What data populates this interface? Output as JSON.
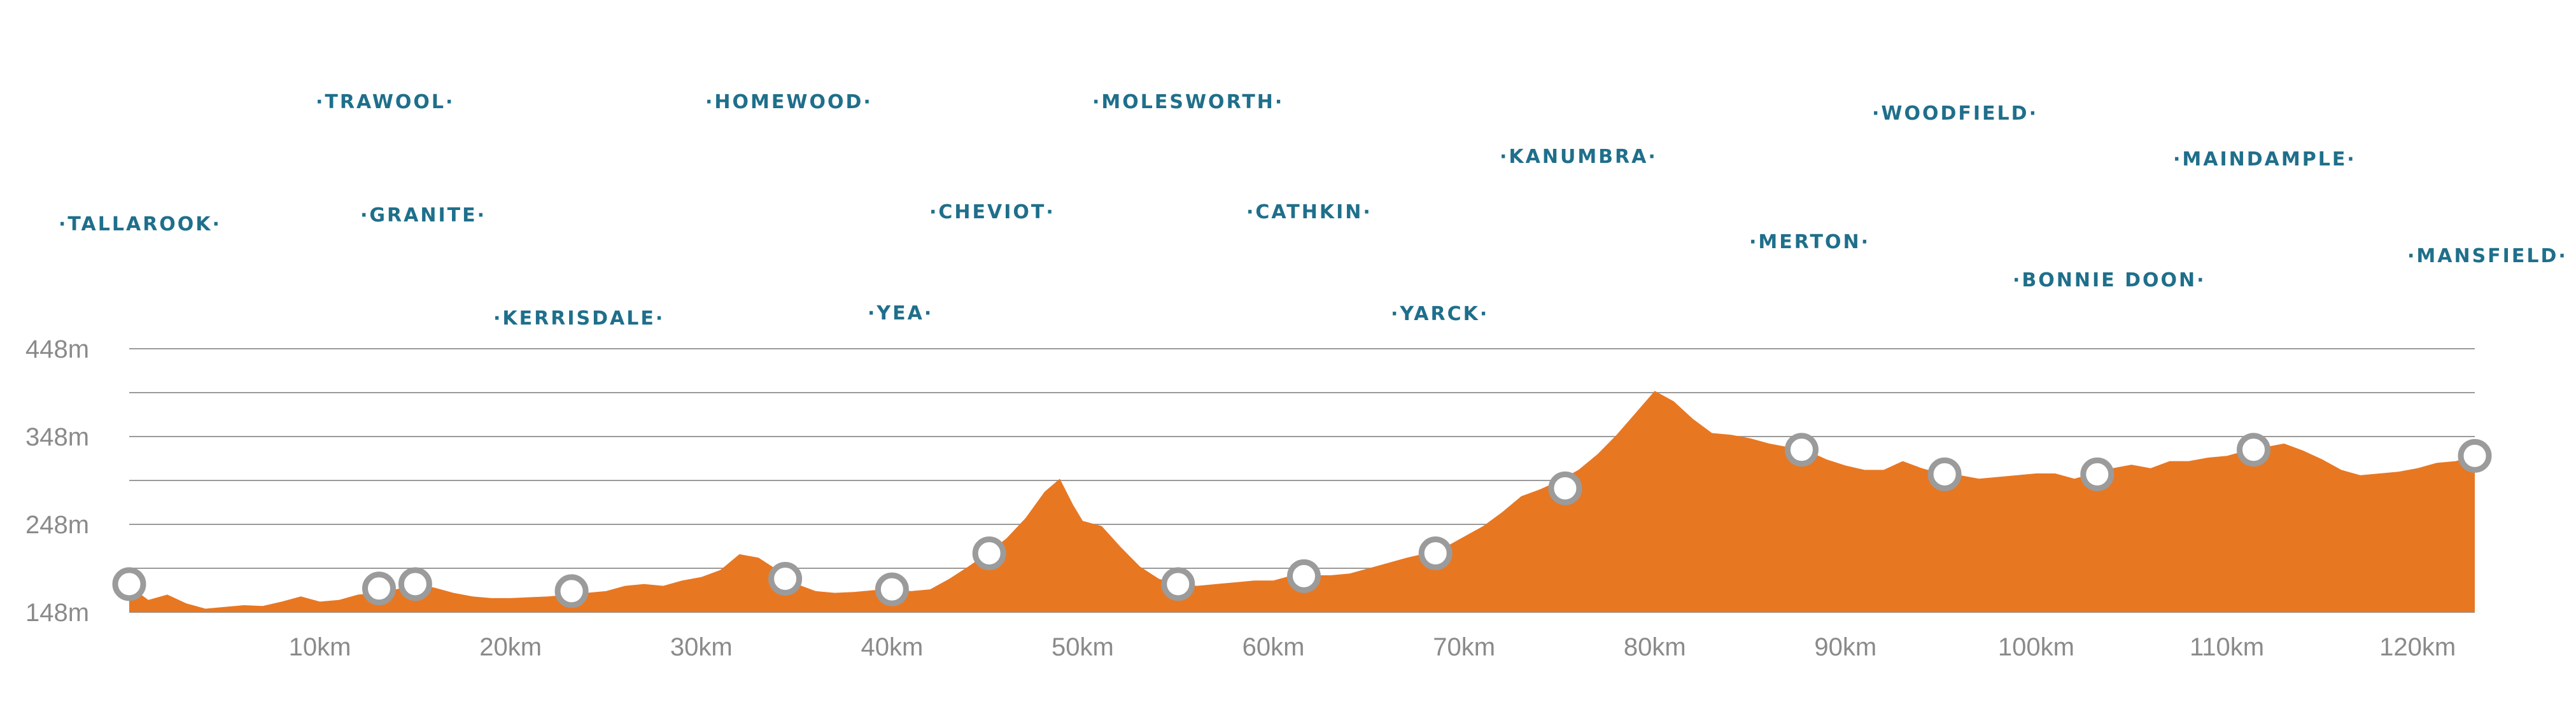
{
  "chart_data": {
    "type": "area",
    "title": "",
    "xlabel": "",
    "ylabel": "",
    "colors": {
      "fill": "#E87722",
      "town_label": "#1F6F8B",
      "grid": "#9A9A9A",
      "axis_text": "#8A8A8A",
      "marker_ring": "#9B9B9B"
    },
    "grid": true,
    "xlim": [
      0,
      123
    ],
    "ylim": [
      148,
      448
    ],
    "y_ticks": [
      {
        "value": 148,
        "label": "148m"
      },
      {
        "value": 248,
        "label": "248m"
      },
      {
        "value": 348,
        "label": "348m"
      },
      {
        "value": 448,
        "label": "448m"
      }
    ],
    "y_grid_values": [
      148,
      198,
      248,
      298,
      348,
      398,
      448
    ],
    "x_ticks": [
      {
        "value": 10,
        "label": "10km"
      },
      {
        "value": 20,
        "label": "20km"
      },
      {
        "value": 30,
        "label": "30km"
      },
      {
        "value": 40,
        "label": "40km"
      },
      {
        "value": 50,
        "label": "50km"
      },
      {
        "value": 60,
        "label": "60km"
      },
      {
        "value": 70,
        "label": "70km"
      },
      {
        "value": 80,
        "label": "80km"
      },
      {
        "value": 90,
        "label": "90km"
      },
      {
        "value": 100,
        "label": "100km"
      },
      {
        "value": 110,
        "label": "110km"
      },
      {
        "value": 120,
        "label": "120km"
      }
    ],
    "series": [
      {
        "x": [
          0,
          1,
          2,
          3,
          4,
          5,
          6,
          7,
          8,
          9,
          10,
          11,
          12,
          13,
          14,
          15,
          16,
          17,
          18,
          19,
          20,
          21,
          22,
          23,
          24,
          25,
          26,
          27,
          28,
          29,
          30,
          31,
          32,
          33,
          34,
          35,
          36,
          37,
          38,
          39,
          40,
          41,
          42,
          43,
          44,
          45,
          46,
          47,
          48,
          48.8,
          49.5,
          50,
          51,
          52,
          53,
          54,
          55,
          56,
          57,
          58,
          59,
          60,
          61,
          62,
          63,
          64,
          65,
          66,
          67,
          68,
          69,
          70,
          71,
          72,
          73,
          74,
          75,
          76,
          77,
          78,
          79,
          80,
          81,
          82,
          83,
          84,
          85,
          86,
          87,
          88,
          89,
          90,
          91,
          92,
          93,
          94,
          95,
          96,
          97,
          98,
          99,
          100,
          101,
          102,
          103,
          104,
          105,
          106,
          107,
          108,
          109,
          110,
          111,
          112,
          113,
          114,
          115,
          116,
          117,
          118,
          119,
          120,
          121,
          122,
          123
        ],
        "y": [
          178,
          162,
          168,
          158,
          152,
          154,
          156,
          155,
          160,
          166,
          160,
          162,
          168,
          170,
          174,
          180,
          176,
          170,
          166,
          164,
          164,
          165,
          166,
          168,
          170,
          172,
          178,
          180,
          178,
          184,
          188,
          196,
          214,
          210,
          196,
          180,
          172,
          170,
          171,
          173,
          174,
          172,
          174,
          186,
          200,
          215,
          232,
          255,
          285,
          300,
          270,
          252,
          246,
          222,
          200,
          186,
          180,
          178,
          180,
          182,
          184,
          184,
          190,
          190,
          190,
          192,
          198,
          204,
          210,
          215,
          222,
          234,
          246,
          262,
          280,
          288,
          298,
          310,
          328,
          350,
          375,
          400,
          388,
          368,
          352,
          350,
          346,
          340,
          336,
          332,
          322,
          315,
          310,
          310,
          320,
          312,
          306,
          304,
          300,
          302,
          304,
          306,
          306,
          300,
          306,
          312,
          316,
          312,
          320,
          320,
          324,
          326,
          332,
          336,
          340,
          332,
          322,
          310,
          304,
          306,
          308,
          312,
          318,
          320,
          326
        ]
      }
    ],
    "waypoints": [
      {
        "name": "TALLAROOK",
        "x": 0,
        "y": 180
      },
      {
        "name": "TRAWOOL",
        "x": 13.1,
        "y": 175
      },
      {
        "name": "GRANITE",
        "x": 15,
        "y": 180
      },
      {
        "name": "KERRISDALE",
        "x": 23.2,
        "y": 172
      },
      {
        "name": "HOMEWOOD",
        "x": 34.4,
        "y": 186
      },
      {
        "name": "YEA",
        "x": 40,
        "y": 174
      },
      {
        "name": "CHEVIOT",
        "x": 45.1,
        "y": 215
      },
      {
        "name": "MOLESWORTH",
        "x": 55,
        "y": 180
      },
      {
        "name": "CATHKIN",
        "x": 61.6,
        "y": 189
      },
      {
        "name": "YARCK",
        "x": 68.5,
        "y": 215
      },
      {
        "name": "KANUMBRA",
        "x": 75.3,
        "y": 289
      },
      {
        "name": "MERTON",
        "x": 87.7,
        "y": 333
      },
      {
        "name": "WOODFIELD",
        "x": 95.2,
        "y": 305
      },
      {
        "name": "BONNIE DOON",
        "x": 103.2,
        "y": 305
      },
      {
        "name": "MAINDAMPLE",
        "x": 111.4,
        "y": 333
      },
      {
        "name": "MANSFIELD",
        "x": 123,
        "y": 326
      }
    ]
  }
}
